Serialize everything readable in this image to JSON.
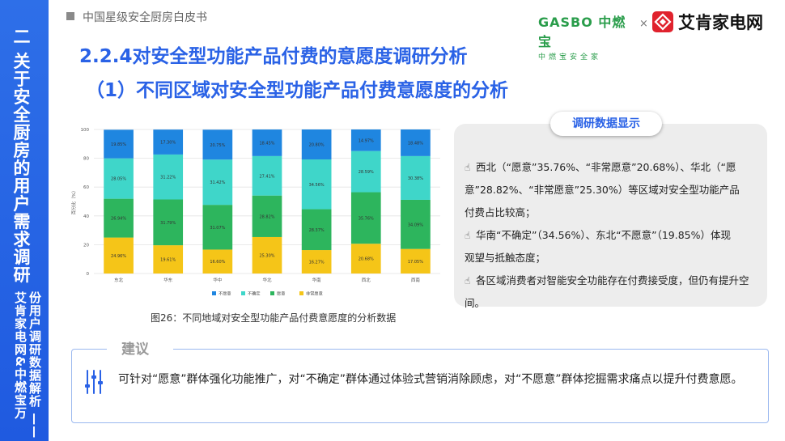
{
  "sidebar": {
    "title": "二 关于安全厨房的用户需求调研",
    "subtitle": "份用户调研数据解析 —— 艾肯家电网&中燃宝万"
  },
  "header": {
    "doc_title": "中国星级安全厨房白皮书",
    "logo_gasbo_main": "GASBO 中燃宝",
    "logo_gasbo_sub": "中燃宝安全家",
    "logo_separator": "×",
    "logo_aiken": "艾肯家电网"
  },
  "titles": {
    "section": "2.2.4对安全型功能产品付费的意愿度调研分析",
    "subsection": "（1）不同区域对安全型功能产品付费意愿度的分析"
  },
  "chart_data": {
    "type": "bar",
    "stacked": true,
    "categories": [
      "东北",
      "华东",
      "华中",
      "华北",
      "华南",
      "西北",
      "西南"
    ],
    "series": [
      {
        "name": "非常愿意",
        "color": "#f5c518",
        "values": [
          24.96,
          19.61,
          16.6,
          25.3,
          16.27,
          20.68,
          17.05
        ]
      },
      {
        "name": "愿意",
        "color": "#2db55d",
        "values": [
          26.94,
          31.79,
          31.07,
          28.82,
          28.37,
          35.76,
          34.09
        ]
      },
      {
        "name": "不确定",
        "color": "#3fd6c9",
        "values": [
          28.05,
          31.22,
          31.42,
          27.41,
          34.56,
          28.59,
          30.38
        ]
      },
      {
        "name": "不愿意",
        "color": "#1f86e0",
        "values": [
          19.85,
          17.3,
          20.75,
          18.45,
          20.8,
          14.97,
          18.48
        ]
      }
    ],
    "label_texts": [
      [
        "24.96%",
        "19.61%",
        "16.60%",
        "25.30%",
        "16.27%",
        "20.68%",
        "17.05%"
      ],
      [
        "26.94%",
        "31.79%",
        "31.07%",
        "28.82%",
        "28.37%",
        "35.76%",
        "34.09%"
      ],
      [
        "28.05%",
        "31.22%",
        "31.42%",
        "27.41%",
        "34.56%",
        "28.59%",
        "30.38%"
      ],
      [
        "19.85%",
        "17.30%",
        "20.75%",
        "18.45%",
        "20.80%",
        "14.97%",
        "18.48%"
      ]
    ],
    "ylabel": "百分比（%）",
    "ylim": [
      0,
      100
    ],
    "yticks": [
      0,
      20,
      40,
      60,
      80,
      100
    ],
    "grid": true,
    "legend_position": "bottom",
    "legend_order": [
      "不愿意",
      "不确定",
      "愿意",
      "非常愿意"
    ]
  },
  "caption": "图26：不同地域对安全型功能产品付费意愿度的分析数据",
  "panel": {
    "label": "调研数据显示",
    "icon": "pointing-hand-icon",
    "point1_line1": "西北（“愿意”35.76%、“非常愿意”20.68%）、华北（“愿",
    "point1_line2": "意”28.82%、“非常愿意”25.30%）等区域对安全型功能产品",
    "point1_line3": "付费占比较高；",
    "point2_line1": "华南“不确定”（34.56%）、东北“不愿意”（19.85%）体现",
    "point2_line2": "观望与抵触态度；",
    "point3_line1": "各区域消费者对智能安全功能存在付费接受度，但仍有提升空间。",
    "icon_glyph": "☝"
  },
  "suggestion": {
    "label": "建议",
    "icon": "sliders-icon",
    "text": "可针对“愿意”群体强化功能推广，对“不确定”群体通过体验式营销消除顾虑，对“不愿意”群体挖掘需求痛点以提升付费意愿。"
  },
  "colors": {
    "brand_blue": "#2a62e6",
    "sidebar_blue": "#2466e4",
    "gasbo_green": "#2a9d4b",
    "aiken_red": "#e0222d"
  }
}
